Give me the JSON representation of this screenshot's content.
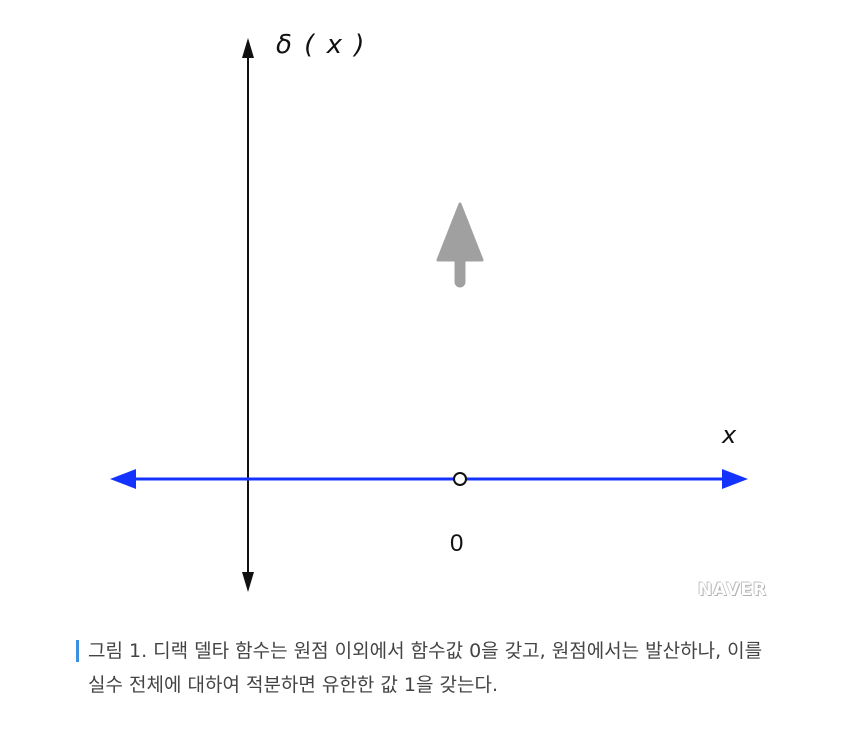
{
  "figure": {
    "ylabel": "δ ( x )",
    "xlabel": "x",
    "origin_label": "0",
    "watermark": "NAVER",
    "colors": {
      "axis": "#111111",
      "real_line": "#1433ff",
      "impulse_arrow": "#a0a0a0",
      "caption_bar": "#3d8fe0"
    }
  },
  "caption": {
    "text": "그림 1. 디랙 델타 함수는 원점 이외에서 함수값 0을 갖고, 원점에서는 발산하나, 이를 실수 전체에 대하여 적분하면 유한한 값 1을 갖는다."
  }
}
